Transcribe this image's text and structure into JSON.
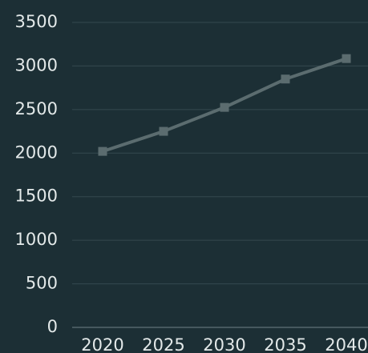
{
  "chart_data": {
    "type": "line",
    "x": [
      2020,
      2025,
      2030,
      2035,
      2040
    ],
    "series": [
      {
        "color": "#5b6c6f",
        "values": [
          2020,
          2250,
          2525,
          2850,
          3085
        ]
      }
    ],
    "xlim": [
      2020,
      2040
    ],
    "xticks": [
      2020,
      2025,
      2030,
      2035,
      2040
    ],
    "ylim": [
      0,
      3500
    ],
    "yticks": [
      0,
      500,
      1000,
      1500,
      2000,
      2500,
      3000,
      3500
    ],
    "grid": true
  }
}
